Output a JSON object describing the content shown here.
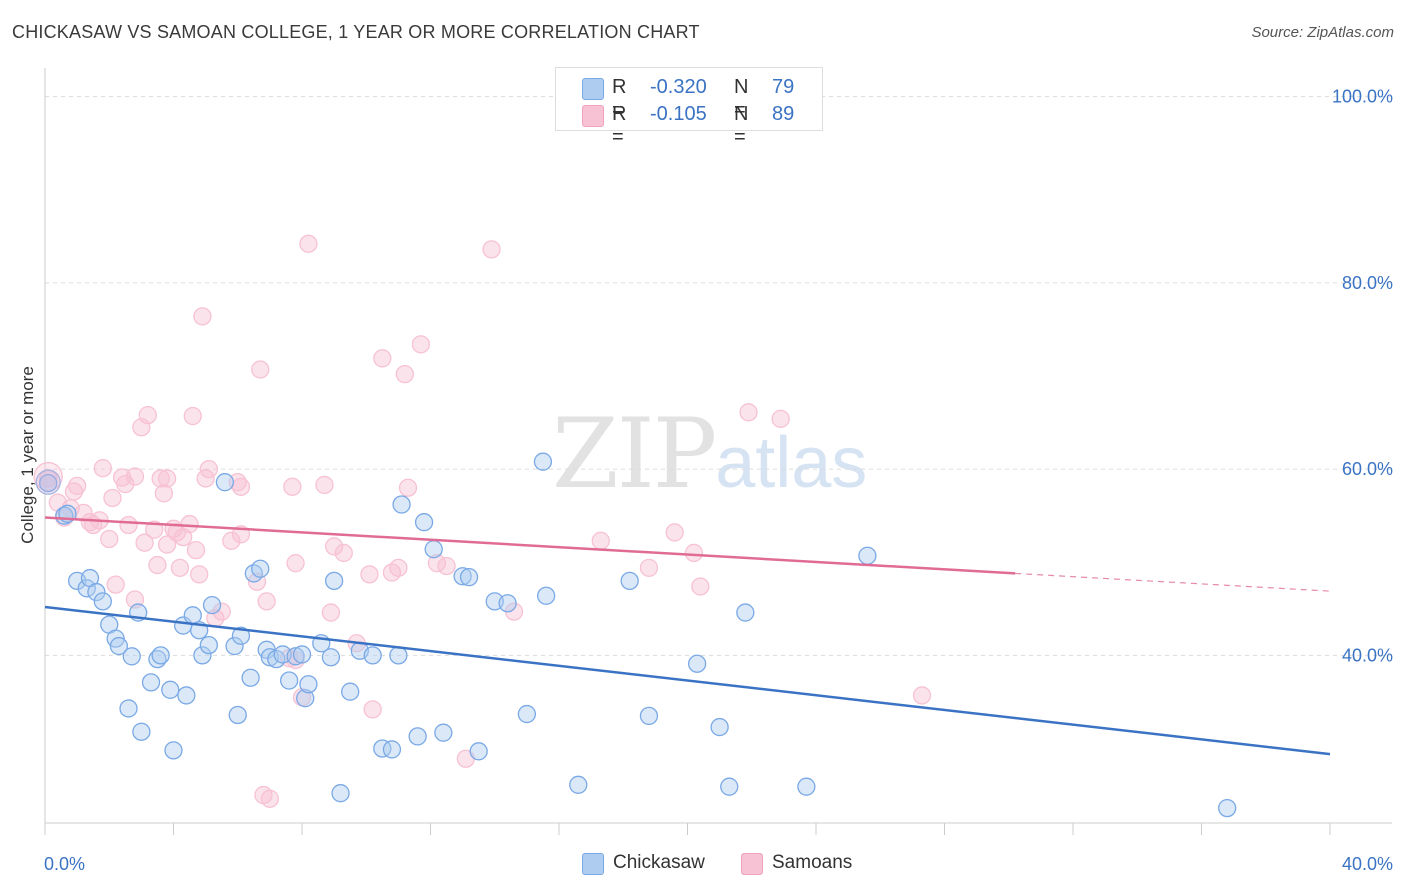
{
  "header": {
    "title": "CHICKASAW VS SAMOAN COLLEGE, 1 YEAR OR MORE CORRELATION CHART",
    "source": "Source: ZipAtlas.com"
  },
  "watermark": {
    "zip": "ZIP",
    "atlas": "atlas"
  },
  "legend": {
    "rows": [
      {
        "r_label": "R =",
        "r_value": "-0.320",
        "n_label": "N =",
        "n_value": "79",
        "color": "#7aa9e6"
      },
      {
        "r_label": "R =",
        "r_value": "-0.105",
        "n_label": "N =",
        "n_value": "89",
        "color": "#f0a3bb"
      }
    ]
  },
  "bottom_legend": {
    "chickasaw": "Chickasaw",
    "samoans": "Samoans"
  },
  "chart_data": {
    "type": "scatter",
    "title": "CHICKASAW VS SAMOAN COLLEGE, 1 YEAR OR MORE CORRELATION CHART",
    "xlabel": "",
    "ylabel": "College, 1 year or more",
    "xlim": [
      0,
      40
    ],
    "ylim": [
      22,
      102
    ],
    "x_tick_labels": [
      "0.0%",
      "40.0%"
    ],
    "y_tick_labels": [
      "100.0%",
      "80.0%",
      "60.0%",
      "40.0%"
    ],
    "y_ticks": [
      100,
      80,
      60,
      40
    ],
    "grid": true,
    "legend_position": "top-center",
    "colors": {
      "chickasaw": "#3b73c4",
      "chickasaw_fill": "#aecbf0",
      "samoans": "#e06c96",
      "samoans_fill": "#f7c2d3"
    },
    "series": [
      {
        "name": "Chickasaw",
        "trend": {
          "x": [
            0,
            40
          ],
          "y": [
            45.2,
            29.4
          ]
        },
        "points": [
          [
            0.1,
            58.5
          ],
          [
            0.6,
            55.0
          ],
          [
            0.7,
            55.2
          ],
          [
            1.0,
            48.0
          ],
          [
            1.3,
            47.2
          ],
          [
            1.4,
            48.3
          ],
          [
            1.6,
            46.8
          ],
          [
            1.8,
            45.8
          ],
          [
            2.0,
            43.3
          ],
          [
            2.2,
            41.8
          ],
          [
            2.3,
            41.0
          ],
          [
            2.6,
            34.3
          ],
          [
            2.7,
            39.9
          ],
          [
            2.9,
            44.6
          ],
          [
            3.0,
            31.8
          ],
          [
            3.3,
            37.1
          ],
          [
            3.5,
            39.6
          ],
          [
            3.6,
            40.0
          ],
          [
            3.9,
            36.3
          ],
          [
            4.0,
            29.8
          ],
          [
            4.3,
            43.2
          ],
          [
            4.4,
            35.7
          ],
          [
            4.6,
            44.3
          ],
          [
            4.8,
            42.7
          ],
          [
            4.9,
            40.0
          ],
          [
            5.1,
            41.1
          ],
          [
            5.2,
            45.4
          ],
          [
            5.6,
            58.6
          ],
          [
            5.9,
            41.0
          ],
          [
            6.0,
            33.6
          ],
          [
            6.1,
            42.1
          ],
          [
            6.4,
            37.6
          ],
          [
            6.5,
            48.8
          ],
          [
            6.7,
            49.3
          ],
          [
            6.9,
            40.6
          ],
          [
            7.0,
            39.8
          ],
          [
            7.2,
            39.6
          ],
          [
            7.4,
            40.1
          ],
          [
            7.6,
            37.3
          ],
          [
            7.8,
            39.9
          ],
          [
            8.0,
            40.1
          ],
          [
            8.1,
            35.4
          ],
          [
            8.2,
            36.9
          ],
          [
            8.6,
            41.3
          ],
          [
            8.9,
            39.8
          ],
          [
            9.0,
            48.0
          ],
          [
            9.2,
            25.2
          ],
          [
            9.5,
            36.1
          ],
          [
            9.8,
            40.5
          ],
          [
            10.2,
            40.0
          ],
          [
            10.5,
            30.0
          ],
          [
            10.8,
            29.9
          ],
          [
            11.0,
            40.0
          ],
          [
            11.1,
            56.2
          ],
          [
            11.6,
            31.3
          ],
          [
            11.8,
            54.3
          ],
          [
            12.1,
            51.4
          ],
          [
            12.4,
            31.7
          ],
          [
            13.0,
            48.5
          ],
          [
            13.2,
            48.4
          ],
          [
            13.5,
            29.7
          ],
          [
            14.0,
            45.8
          ],
          [
            14.4,
            45.6
          ],
          [
            15.0,
            33.7
          ],
          [
            15.5,
            60.8
          ],
          [
            15.6,
            46.4
          ],
          [
            16.6,
            26.1
          ],
          [
            18.2,
            48.0
          ],
          [
            18.8,
            33.5
          ],
          [
            20.3,
            39.1
          ],
          [
            21.0,
            32.3
          ],
          [
            21.3,
            25.9
          ],
          [
            21.8,
            44.6
          ],
          [
            23.7,
            25.9
          ],
          [
            25.6,
            50.7
          ],
          [
            36.8,
            23.6
          ]
        ]
      },
      {
        "name": "Samoans",
        "trend": {
          "x": [
            0,
            30.2
          ],
          "y": [
            54.8,
            48.8
          ]
        },
        "trend_extension": {
          "x": [
            30.2,
            40
          ],
          "y": [
            48.8,
            46.9
          ]
        },
        "points": [
          [
            0.1,
            59.0
          ],
          [
            0.4,
            56.4
          ],
          [
            0.6,
            54.8
          ],
          [
            0.8,
            55.8
          ],
          [
            0.9,
            57.6
          ],
          [
            1.0,
            58.2
          ],
          [
            1.2,
            55.3
          ],
          [
            1.4,
            54.3
          ],
          [
            1.5,
            54.0
          ],
          [
            1.7,
            54.5
          ],
          [
            1.8,
            60.1
          ],
          [
            2.0,
            52.5
          ],
          [
            2.1,
            56.9
          ],
          [
            2.2,
            47.6
          ],
          [
            2.4,
            59.1
          ],
          [
            2.5,
            58.4
          ],
          [
            2.6,
            54.0
          ],
          [
            2.8,
            59.2
          ],
          [
            2.8,
            46.0
          ],
          [
            3.0,
            64.5
          ],
          [
            3.1,
            52.1
          ],
          [
            3.2,
            65.8
          ],
          [
            3.4,
            53.5
          ],
          [
            3.5,
            49.7
          ],
          [
            3.6,
            59.0
          ],
          [
            3.7,
            57.4
          ],
          [
            3.8,
            59.0
          ],
          [
            3.8,
            51.9
          ],
          [
            4.0,
            53.6
          ],
          [
            4.1,
            53.2
          ],
          [
            4.2,
            49.4
          ],
          [
            4.3,
            52.7
          ],
          [
            4.5,
            54.1
          ],
          [
            4.6,
            65.7
          ],
          [
            4.7,
            51.3
          ],
          [
            4.8,
            48.7
          ],
          [
            4.9,
            76.4
          ],
          [
            5.0,
            59.0
          ],
          [
            5.1,
            60.0
          ],
          [
            5.3,
            44.0
          ],
          [
            5.5,
            44.7
          ],
          [
            5.8,
            52.3
          ],
          [
            6.0,
            58.6
          ],
          [
            6.1,
            58.1
          ],
          [
            6.1,
            53.0
          ],
          [
            6.6,
            47.9
          ],
          [
            6.7,
            70.7
          ],
          [
            6.8,
            25.0
          ],
          [
            6.9,
            45.8
          ],
          [
            7.0,
            24.6
          ],
          [
            7.6,
            39.7
          ],
          [
            7.7,
            58.1
          ],
          [
            7.8,
            49.9
          ],
          [
            7.8,
            39.5
          ],
          [
            8.0,
            35.5
          ],
          [
            8.2,
            84.2
          ],
          [
            8.7,
            58.3
          ],
          [
            8.9,
            44.6
          ],
          [
            9.0,
            51.7
          ],
          [
            9.3,
            51.0
          ],
          [
            9.7,
            41.3
          ],
          [
            10.1,
            48.7
          ],
          [
            10.2,
            34.2
          ],
          [
            10.5,
            71.9
          ],
          [
            10.8,
            48.9
          ],
          [
            11.0,
            49.4
          ],
          [
            11.2,
            70.2
          ],
          [
            11.3,
            58.0
          ],
          [
            11.7,
            73.4
          ],
          [
            12.2,
            49.9
          ],
          [
            12.5,
            49.6
          ],
          [
            13.1,
            28.9
          ],
          [
            13.9,
            83.6
          ],
          [
            14.6,
            44.7
          ],
          [
            17.3,
            52.3
          ],
          [
            18.8,
            49.4
          ],
          [
            19.6,
            53.2
          ],
          [
            20.2,
            51.0
          ],
          [
            20.4,
            47.4
          ],
          [
            21.9,
            66.1
          ],
          [
            22.9,
            65.4
          ],
          [
            27.3,
            35.7
          ]
        ]
      }
    ]
  }
}
